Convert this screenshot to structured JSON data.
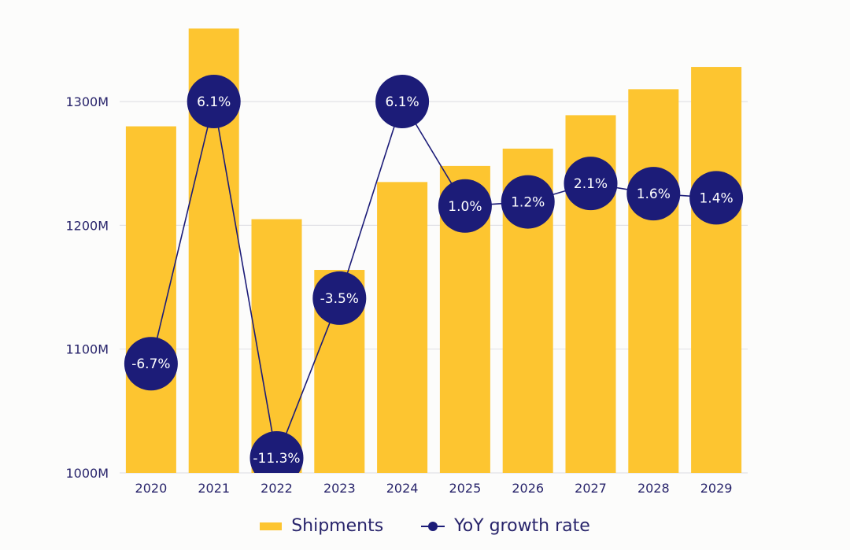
{
  "chart_data": {
    "type": "bar",
    "title": "",
    "xlabel": "",
    "ylabel": "",
    "categories": [
      "2020",
      "2021",
      "2022",
      "2023",
      "2024",
      "2025",
      "2026",
      "2027",
      "2028",
      "2029"
    ],
    "series": [
      {
        "name": "Shipments",
        "type": "bar",
        "unit": "M",
        "color": "#fdc530",
        "values": [
          1280,
          1359,
          1205,
          1164,
          1235,
          1248,
          1262,
          1289,
          1310,
          1328
        ]
      },
      {
        "name": "YoY growth rate",
        "type": "line",
        "unit": "%",
        "color": "#1c1c78",
        "values": [
          -6.7,
          6.1,
          -11.3,
          -3.5,
          6.1,
          1.0,
          1.2,
          2.1,
          1.6,
          1.4
        ],
        "labels": [
          "-6.7%",
          "6.1%",
          "-11.3%",
          "-3.5%",
          "6.1%",
          "1.0%",
          "1.2%",
          "2.1%",
          "1.6%",
          "1.4%"
        ]
      }
    ],
    "ylim": [
      1000,
      1370
    ],
    "yticks": [
      1000,
      1100,
      1200,
      1300
    ],
    "ytick_labels": [
      "1000M",
      "1100M",
      "1200M",
      "1300M"
    ],
    "secondary_ylim": [
      -11.3,
      6.1
    ],
    "grid": true,
    "legend": "bottom-center"
  },
  "legend": {
    "items": [
      {
        "label": "Shipments",
        "icon": "bar-swatch"
      },
      {
        "label": "YoY growth rate",
        "icon": "line-marker-swatch"
      }
    ]
  }
}
